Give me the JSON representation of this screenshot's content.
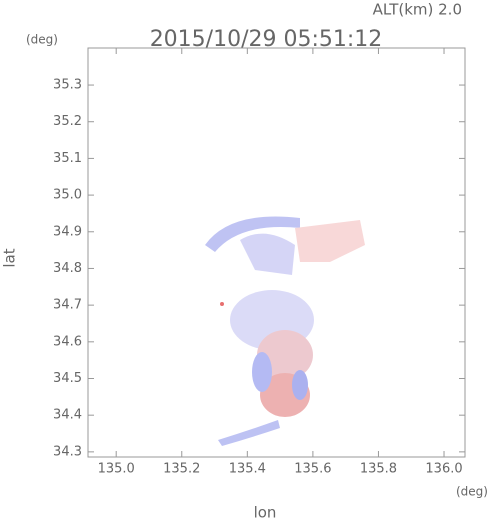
{
  "chart_data": {
    "type": "map",
    "title": "2015/10/29 05:51:12",
    "subtitle": "ALT(km) 2.0",
    "y_unit": "(deg)",
    "x_unit": "(deg)",
    "xlabel": "lon",
    "ylabel": "lat",
    "xlim": [
      134.914,
      136.064
    ],
    "xticks": [
      {
        "value": 135,
        "label": "135.0"
      },
      135.2,
      135.4,
      135.6,
      135.8,
      {
        "value": 136,
        "label": "136.0"
      }
    ],
    "ylim": [
      34.286,
      35.401
    ],
    "yticks": [
      34.3,
      34.4,
      34.5,
      34.6,
      34.7,
      34.8,
      34.9,
      {
        "value": 35,
        "label": "35.0"
      },
      35.1,
      35.2,
      35.3
    ]
  }
}
